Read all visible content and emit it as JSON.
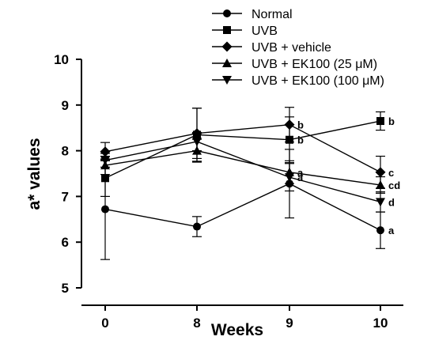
{
  "chart_data": {
    "type": "line",
    "xlabel": "Weeks",
    "ylabel": "a* values",
    "categories": [
      "0",
      "8",
      "9",
      "10"
    ],
    "ylim": [
      5,
      10
    ],
    "yticks": [
      "5",
      "6",
      "7",
      "8",
      "9",
      "10"
    ],
    "grid": false,
    "legend_position": "top-right",
    "series": [
      {
        "name": "Normal",
        "marker": "circle",
        "values": [
          6.72,
          6.34,
          7.28,
          6.26
        ],
        "errors": [
          1.1,
          0.22,
          0.75,
          0.4
        ],
        "sig_labels": [
          "",
          "",
          "",
          "a"
        ]
      },
      {
        "name": "UVB",
        "marker": "square",
        "values": [
          7.4,
          8.35,
          8.24,
          8.65
        ],
        "errors": [
          0.4,
          0.58,
          0.5,
          0.2
        ],
        "sig_labels": [
          "",
          "",
          "b",
          "b"
        ]
      },
      {
        "name": "UVB + vehicle",
        "marker": "diamond",
        "values": [
          7.98,
          8.38,
          8.57,
          7.53
        ],
        "errors": [
          0.2,
          0.55,
          0.38,
          0.35
        ],
        "sig_labels": [
          "",
          "",
          "b",
          "c"
        ]
      },
      {
        "name": "UVB + EK100 (25 μM)",
        "marker": "triangle-up",
        "values": [
          7.68,
          8.0,
          7.53,
          7.25
        ],
        "errors": [
          0.2,
          0.25,
          0.25,
          0.18
        ],
        "sig_labels": [
          "",
          "",
          "a",
          "cd"
        ]
      },
      {
        "name": "UVB + EK100 (100 μM)",
        "marker": "triangle-down",
        "values": [
          7.79,
          8.2,
          7.42,
          6.88
        ],
        "errors": [
          0.15,
          0.2,
          0.3,
          0.22
        ],
        "sig_labels": [
          "",
          "",
          "a",
          "d"
        ]
      }
    ]
  }
}
